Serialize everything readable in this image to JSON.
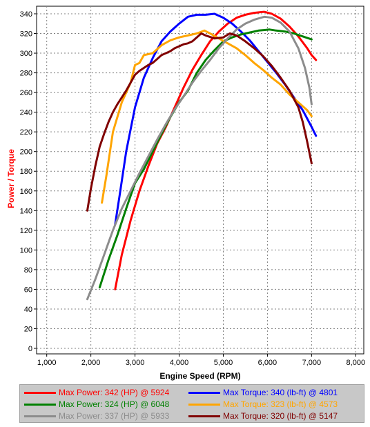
{
  "chart_data": {
    "type": "line",
    "xlabel": "Engine Speed (RPM)",
    "ylabel": "Power / Torque",
    "xlim": [
      1000,
      8000
    ],
    "ylim": [
      0,
      340
    ],
    "xticks": [
      1000,
      2000,
      3000,
      4000,
      5000,
      6000,
      7000,
      8000
    ],
    "xtick_labels": [
      "1,000",
      "2,000",
      "3,000",
      "4,000",
      "5,000",
      "6,000",
      "7,000",
      "8,000"
    ],
    "yticks": [
      0,
      20,
      40,
      60,
      80,
      100,
      120,
      140,
      160,
      180,
      200,
      220,
      240,
      260,
      280,
      300,
      320,
      340
    ],
    "grid": true,
    "legend_position": "bottom",
    "series": [
      {
        "name": "Max Power: 342 (HP) @ 5924",
        "color": "#ff0000",
        "x": [
          2550,
          2700,
          2900,
          3100,
          3300,
          3500,
          3700,
          3900,
          4100,
          4300,
          4500,
          4700,
          4900,
          5100,
          5300,
          5500,
          5700,
          5924,
          6100,
          6300,
          6500,
          6700,
          6900,
          7000,
          7100
        ],
        "y": [
          60,
          95,
          130,
          160,
          185,
          208,
          225,
          245,
          265,
          283,
          298,
          312,
          322,
          330,
          336,
          339,
          341,
          342,
          340,
          335,
          327,
          317,
          305,
          298,
          293
        ]
      },
      {
        "name": "Max Torque: 340 (lb-ft) @ 4801",
        "color": "#0000ff",
        "x": [
          2550,
          2650,
          2800,
          3000,
          3200,
          3400,
          3600,
          3800,
          4000,
          4200,
          4400,
          4600,
          4801,
          5000,
          5200,
          5400,
          5600,
          5800,
          6000,
          6200,
          6400,
          6600,
          6800,
          7000,
          7100
        ],
        "y": [
          126,
          155,
          200,
          245,
          275,
          295,
          312,
          322,
          330,
          337,
          339,
          339,
          340,
          336,
          330,
          322,
          313,
          302,
          291,
          280,
          268,
          255,
          242,
          225,
          216
        ]
      },
      {
        "name": "Max Power: 324 (HP) @ 6048",
        "color": "#008000",
        "x": [
          2200,
          2400,
          2600,
          2800,
          3000,
          3200,
          3400,
          3600,
          3800,
          4000,
          4200,
          4400,
          4600,
          4800,
          5000,
          5200,
          5400,
          5600,
          5800,
          6048,
          6200,
          6400,
          6600,
          6800,
          7000
        ],
        "y": [
          62,
          90,
          115,
          142,
          168,
          182,
          200,
          218,
          235,
          250,
          262,
          280,
          293,
          303,
          312,
          316,
          319,
          321,
          323,
          324,
          323,
          322,
          320,
          317,
          314
        ]
      },
      {
        "name": "Max Torque: 323 (lb-ft) @ 4573",
        "color": "#ffa500",
        "x": [
          2250,
          2350,
          2500,
          2700,
          2900,
          3000,
          3100,
          3200,
          3400,
          3600,
          3800,
          4000,
          4200,
          4400,
          4573,
          4700,
          4900,
          5100,
          5300,
          5500,
          5700,
          5900,
          6100,
          6300,
          6500,
          6700,
          6900,
          7000
        ],
        "y": [
          148,
          175,
          220,
          250,
          270,
          288,
          290,
          298,
          300,
          308,
          313,
          316,
          318,
          320,
          323,
          320,
          315,
          310,
          305,
          298,
          290,
          283,
          275,
          268,
          258,
          250,
          242,
          236
        ]
      },
      {
        "name": "Max Power: 337 (HP) @ 5933",
        "color": "#8c8c8c",
        "x": [
          1920,
          2100,
          2300,
          2500,
          2700,
          2900,
          3100,
          3300,
          3500,
          3700,
          3900,
          4100,
          4300,
          4500,
          4700,
          4900,
          5100,
          5300,
          5500,
          5700,
          5933,
          6100,
          6300,
          6500,
          6700,
          6850,
          6950,
          7000
        ],
        "y": [
          50,
          70,
          95,
          120,
          142,
          160,
          178,
          195,
          212,
          228,
          243,
          256,
          270,
          282,
          293,
          305,
          315,
          324,
          330,
          334,
          337,
          336,
          331,
          322,
          305,
          285,
          265,
          248
        ]
      },
      {
        "name": "Max Torque: 320 (lb-ft) @ 5147",
        "color": "#800000",
        "x": [
          1920,
          2000,
          2100,
          2200,
          2300,
          2400,
          2500,
          2600,
          2700,
          2800,
          2900,
          3000,
          3100,
          3200,
          3300,
          3400,
          3500,
          3600,
          3700,
          3800,
          3900,
          4000,
          4100,
          4200,
          4300,
          4400,
          4500,
          4600,
          4800,
          5000,
          5147,
          5300,
          5500,
          5700,
          5900,
          6100,
          6300,
          6500,
          6700,
          6800,
          6900,
          7000
        ],
        "y": [
          140,
          162,
          185,
          205,
          218,
          230,
          240,
          248,
          255,
          262,
          270,
          278,
          282,
          285,
          288,
          290,
          294,
          298,
          300,
          302,
          305,
          307,
          309,
          310,
          312,
          316,
          320,
          318,
          315,
          316,
          320,
          318,
          312,
          305,
          297,
          287,
          275,
          262,
          245,
          230,
          210,
          188
        ]
      }
    ]
  }
}
